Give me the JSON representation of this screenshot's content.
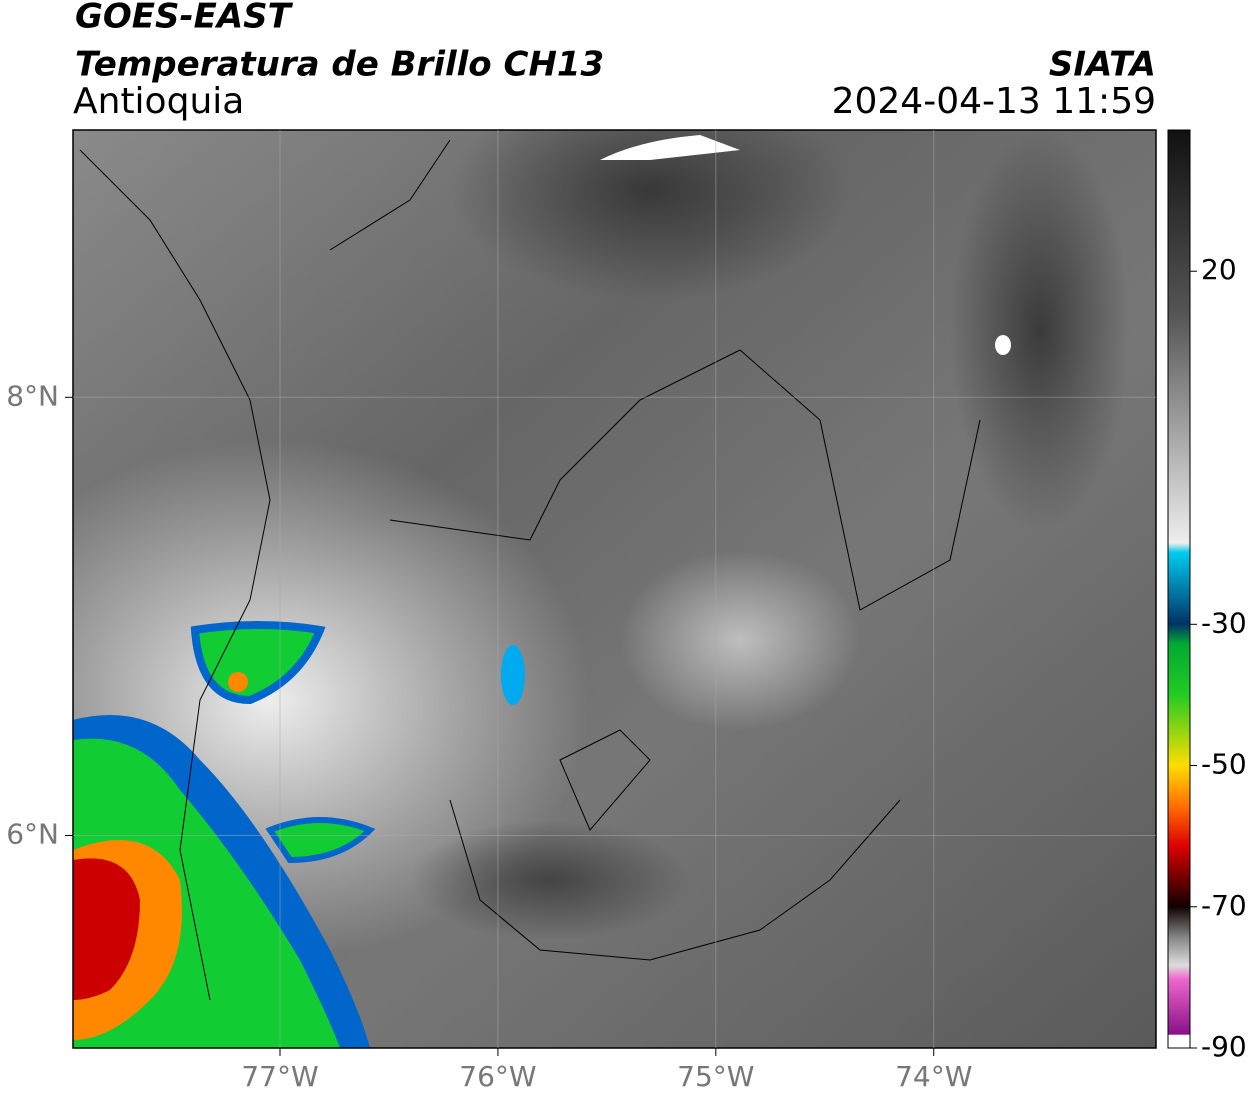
{
  "header": {
    "title": "GOES-EAST",
    "subtitle": "Temperatura de Brillo CH13",
    "region": "Antioquia",
    "source": "SIATA",
    "datetime": "2024-04-13 11:59"
  },
  "map": {
    "xlim": [
      -77.95,
      -72.98
    ],
    "ylim": [
      5.03,
      9.22
    ],
    "xticks": [
      {
        "value": -77,
        "label": "77°W"
      },
      {
        "value": -76,
        "label": "76°W"
      },
      {
        "value": -75,
        "label": "75°W"
      },
      {
        "value": -74,
        "label": "74°W"
      }
    ],
    "yticks": [
      {
        "value": 8,
        "label": "8°N"
      },
      {
        "value": 6,
        "label": "6°N"
      }
    ],
    "grid": true
  },
  "colorbar": {
    "lim": [
      -90,
      40
    ],
    "ticks": [
      20,
      -30,
      -50,
      -70,
      -90
    ]
  }
}
